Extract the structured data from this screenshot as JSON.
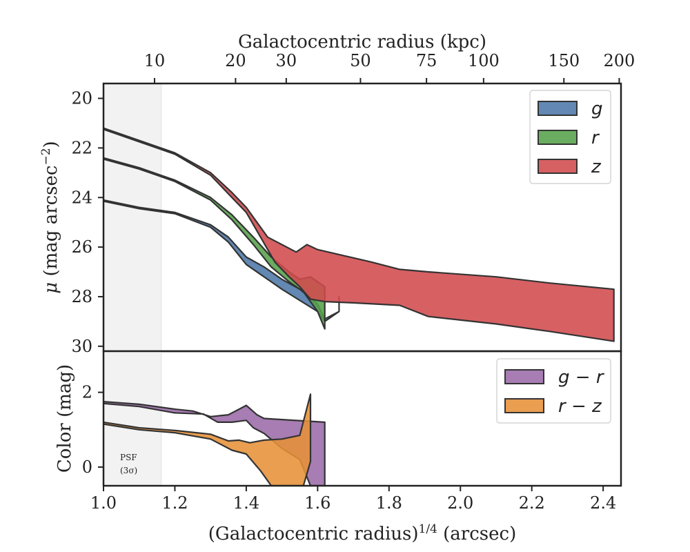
{
  "chart_data": [
    {
      "type": "area",
      "panel": "surface-brightness",
      "xlabel": "(Galactocentric radius)^1/4 (arcsec)",
      "xlabel_parts": {
        "main": "(Galactocentric radius)",
        "sup": "1/4",
        "unit": " (arcsec)"
      },
      "ylabel": "μ (mag arcsec^−2)",
      "ylabel_parts": {
        "mu": "μ",
        "main": " (mag arcsec",
        "sup": "−2",
        "close": ")"
      },
      "top_xlabel": "Galactocentric radius (kpc)",
      "xlim": [
        1.0,
        2.45
      ],
      "ylim": [
        30.2,
        19.4
      ],
      "y_inverted": true,
      "yticks": [
        20,
        22,
        24,
        26,
        28,
        30
      ],
      "top_ticks": [
        {
          "label": "10",
          "x": 1.143
        },
        {
          "label": "20",
          "x": 1.37
        },
        {
          "label": "30",
          "x": 1.512
        },
        {
          "label": "50",
          "x": 1.72
        },
        {
          "label": "75",
          "x": 1.905
        },
        {
          "label": "100",
          "x": 2.065
        },
        {
          "label": "150",
          "x": 2.29
        },
        {
          "label": "200",
          "x": 2.445
        }
      ],
      "legend": {
        "placement": "upper right"
      },
      "series": [
        {
          "name": "g",
          "color": "#4c78a8",
          "upper": [
            [
              1.0,
              24.1
            ],
            [
              1.1,
              24.4
            ],
            [
              1.2,
              24.6
            ],
            [
              1.3,
              25.1
            ],
            [
              1.35,
              25.6
            ],
            [
              1.4,
              26.4
            ],
            [
              1.45,
              26.8
            ],
            [
              1.5,
              27.3
            ],
            [
              1.55,
              27.7
            ],
            [
              1.6,
              28.3
            ],
            [
              1.62,
              28.9
            ],
            [
              1.66,
              28.6
            ],
            [
              1.66,
              28.0
            ]
          ],
          "lower": [
            [
              1.0,
              24.15
            ],
            [
              1.1,
              24.45
            ],
            [
              1.2,
              24.65
            ],
            [
              1.3,
              25.2
            ],
            [
              1.35,
              25.8
            ],
            [
              1.4,
              26.7
            ],
            [
              1.5,
              27.7
            ],
            [
              1.6,
              28.6
            ],
            [
              1.62,
              29.0
            ],
            [
              1.66,
              28.6
            ]
          ]
        },
        {
          "name": "r",
          "color": "#55a24a",
          "upper": [
            [
              1.0,
              22.4
            ],
            [
              1.1,
              22.8
            ],
            [
              1.2,
              23.3
            ],
            [
              1.3,
              24.0
            ],
            [
              1.36,
              24.7
            ],
            [
              1.42,
              25.6
            ],
            [
              1.47,
              26.4
            ],
            [
              1.52,
              27.0
            ],
            [
              1.55,
              27.3
            ],
            [
              1.58,
              27.2
            ],
            [
              1.62,
              27.6
            ],
            [
              1.62,
              29.3
            ]
          ],
          "lower": [
            [
              1.0,
              22.45
            ],
            [
              1.1,
              22.85
            ],
            [
              1.2,
              23.35
            ],
            [
              1.3,
              24.1
            ],
            [
              1.36,
              24.9
            ],
            [
              1.42,
              25.9
            ],
            [
              1.47,
              26.8
            ],
            [
              1.52,
              27.4
            ],
            [
              1.56,
              27.8
            ],
            [
              1.6,
              28.6
            ],
            [
              1.62,
              29.3
            ]
          ]
        },
        {
          "name": "z",
          "color": "#d24a4d",
          "upper": [
            [
              1.0,
              21.2
            ],
            [
              1.1,
              21.7
            ],
            [
              1.2,
              22.2
            ],
            [
              1.3,
              23.0
            ],
            [
              1.36,
              23.8
            ],
            [
              1.4,
              24.4
            ],
            [
              1.43,
              25.0
            ],
            [
              1.46,
              25.6
            ],
            [
              1.5,
              25.9
            ],
            [
              1.54,
              26.2
            ],
            [
              1.57,
              25.9
            ],
            [
              1.6,
              26.1
            ],
            [
              1.66,
              26.3
            ],
            [
              1.75,
              26.6
            ],
            [
              1.83,
              26.9
            ],
            [
              1.91,
              27.0
            ],
            [
              2.1,
              27.2
            ],
            [
              2.25,
              27.45
            ],
            [
              2.43,
              27.7
            ]
          ],
          "lower": [
            [
              1.0,
              21.25
            ],
            [
              1.1,
              21.75
            ],
            [
              1.2,
              22.25
            ],
            [
              1.3,
              23.1
            ],
            [
              1.36,
              24.0
            ],
            [
              1.4,
              24.6
            ],
            [
              1.44,
              25.6
            ],
            [
              1.48,
              26.6
            ],
            [
              1.52,
              27.2
            ],
            [
              1.55,
              27.6
            ],
            [
              1.58,
              28.1
            ],
            [
              1.62,
              28.2
            ],
            [
              1.7,
              28.25
            ],
            [
              1.83,
              28.35
            ],
            [
              1.91,
              28.8
            ],
            [
              2.1,
              29.1
            ],
            [
              2.25,
              29.4
            ],
            [
              2.43,
              29.8
            ]
          ]
        }
      ]
    },
    {
      "type": "area",
      "panel": "color",
      "xlabel": "(Galactocentric radius)^1/4 (arcsec)",
      "ylabel": "Color (mag)",
      "xlim": [
        1.0,
        2.45
      ],
      "ylim": [
        -0.5,
        3.1
      ],
      "yticks": [
        0,
        2
      ],
      "xticks": [
        "1.0",
        "1.2",
        "1.4",
        "1.6",
        "1.8",
        "2.0",
        "2.2",
        "2.4"
      ],
      "legend": {
        "placement": "upper right"
      },
      "series": [
        {
          "name": "g − r",
          "color": "#9b6ba8",
          "upper": [
            [
              1.0,
              1.75
            ],
            [
              1.1,
              1.68
            ],
            [
              1.2,
              1.55
            ],
            [
              1.25,
              1.5
            ],
            [
              1.3,
              1.35
            ],
            [
              1.35,
              1.4
            ],
            [
              1.38,
              1.55
            ],
            [
              1.4,
              1.65
            ],
            [
              1.43,
              1.4
            ],
            [
              1.45,
              1.3
            ],
            [
              1.62,
              1.2
            ],
            [
              1.62,
              -0.5
            ]
          ],
          "lower": [
            [
              1.0,
              1.7
            ],
            [
              1.1,
              1.62
            ],
            [
              1.2,
              1.45
            ],
            [
              1.28,
              1.42
            ],
            [
              1.32,
              1.2
            ],
            [
              1.36,
              1.2
            ],
            [
              1.4,
              1.25
            ],
            [
              1.42,
              1.05
            ],
            [
              1.45,
              0.9
            ],
            [
              1.5,
              0.5
            ],
            [
              1.55,
              0.2
            ],
            [
              1.58,
              -0.5
            ],
            [
              1.62,
              -0.5
            ]
          ]
        },
        {
          "name": "r − z",
          "color": "#e69138",
          "upper": [
            [
              1.0,
              1.2
            ],
            [
              1.1,
              1.05
            ],
            [
              1.2,
              0.98
            ],
            [
              1.3,
              0.88
            ],
            [
              1.35,
              0.7
            ],
            [
              1.38,
              0.72
            ],
            [
              1.41,
              0.65
            ],
            [
              1.45,
              0.72
            ],
            [
              1.5,
              0.75
            ],
            [
              1.55,
              0.85
            ],
            [
              1.58,
              1.95
            ],
            [
              1.58,
              0.15
            ],
            [
              1.56,
              -0.5
            ]
          ],
          "lower": [
            [
              1.0,
              1.15
            ],
            [
              1.1,
              1.0
            ],
            [
              1.2,
              0.92
            ],
            [
              1.3,
              0.75
            ],
            [
              1.36,
              0.45
            ],
            [
              1.4,
              0.35
            ],
            [
              1.44,
              -0.1
            ],
            [
              1.47,
              -0.5
            ],
            [
              1.56,
              -0.5
            ]
          ]
        }
      ]
    }
  ],
  "psf_region": {
    "x_range": [
      1.0,
      1.162
    ],
    "label_line1": "PSF",
    "label_line2": "(3σ)"
  }
}
